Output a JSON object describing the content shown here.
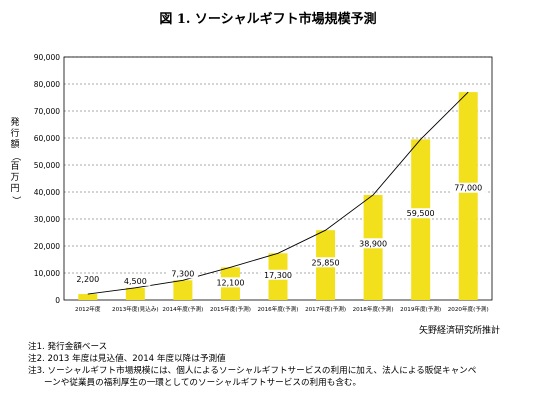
{
  "title": "図 1. ソーシャルギフト市場規模予測",
  "source": "矢野経済研究所推計",
  "notes": [
    "注1. 発行金額ベース",
    "注2. 2013 年度は見込値、2014 年度以降は予測値",
    "注3. ソーシャルギフト市場規模には、個人によるソーシャルギフトサービスの利用に加え、法人による販促キャンペ",
    "ーンや従業員の福利厚生の一環としてのソーシャルギフトサービスの利用も含む。"
  ],
  "chart_data": {
    "type": "bar",
    "ylabel": "発行額（百万円）",
    "ylim": [
      0,
      90000
    ],
    "yticks": [
      0,
      10000,
      20000,
      30000,
      40000,
      50000,
      60000,
      70000,
      80000,
      90000
    ],
    "ytick_labels": [
      "0",
      "10,000",
      "20,000",
      "30,000",
      "40,000",
      "50,000",
      "60,000",
      "70,000",
      "80,000",
      "90,000"
    ],
    "grid": true,
    "categories": [
      "2012年度",
      "2013年度(見込み)",
      "2014年度(予測)",
      "2015年度(予測)",
      "2016年度(予測)",
      "2017年度(予測)",
      "2018年度(予測)",
      "2019年度(予測)",
      "2020年度(予測)"
    ],
    "values": [
      2200,
      4500,
      7300,
      12100,
      17300,
      25850,
      38900,
      59500,
      77000
    ],
    "data_labels": [
      "2,200",
      "4,500",
      "7,300",
      "12,100",
      "17,300",
      "25,850",
      "38,900",
      "59,500",
      "77,000"
    ],
    "bar_color": "#f2e01c",
    "line": true
  }
}
